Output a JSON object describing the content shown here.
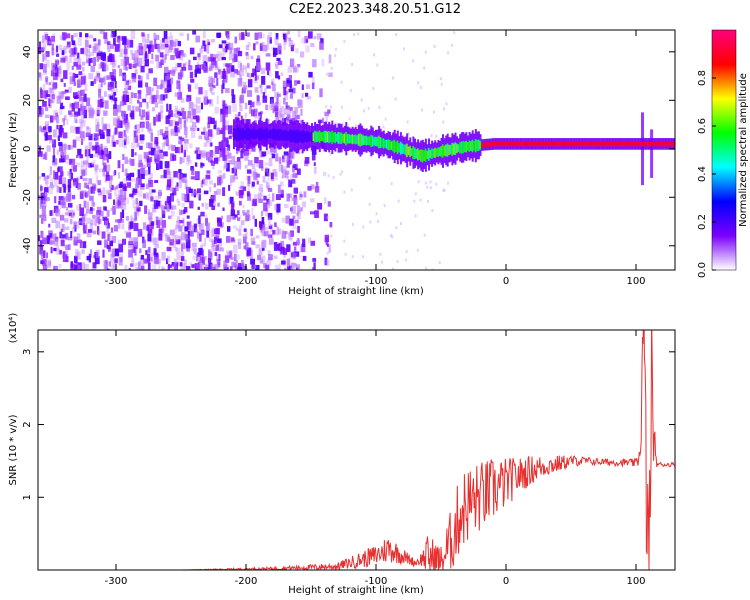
{
  "title": "C2E2.2023.348.20.51.G12",
  "chart_data": [
    {
      "type": "heatmap",
      "xlabel": "Height of straight line (km)",
      "ylabel": "Frequency (Hz)",
      "xlim": [
        -360,
        130
      ],
      "ylim": [
        -50,
        49
      ],
      "xticks": [
        -300,
        -200,
        -100,
        0,
        100
      ],
      "yticks": [
        -40,
        -20,
        0,
        20,
        40
      ],
      "colorbar": {
        "label": "Normalized spectral amplitude",
        "range": [
          0,
          1
        ],
        "ticks": [
          "0.0",
          "0.2",
          "0.4",
          "0.6",
          "0.8"
        ],
        "colors": [
          "#ffffff",
          "#7a00ff",
          "#0000ff",
          "#00ffff",
          "#00ff00",
          "#ffff00",
          "#ff0000",
          "#ff0080"
        ]
      },
      "ridge": {
        "x": [
          -200,
          -180,
          -160,
          -140,
          -120,
          -100,
          -80,
          -65,
          -50,
          -30,
          -10,
          10,
          50,
          100,
          130
        ],
        "y": [
          6,
          6,
          5,
          5,
          4,
          3,
          0,
          -3,
          -1,
          1,
          2,
          2,
          2,
          2,
          2
        ]
      },
      "spikes": [
        {
          "x": -217,
          "y": [
            -5,
            20
          ]
        },
        {
          "x": 105,
          "y": [
            -15,
            15
          ]
        },
        {
          "x": 112,
          "y": [
            -12,
            8
          ]
        }
      ]
    },
    {
      "type": "line",
      "xlabel": "Height of straight line (km)",
      "ylabel": "SNR (10 * v/v)",
      "yscale_label": "(x10⁴)",
      "xlim": [
        -360,
        130
      ],
      "ylim": [
        0,
        3.3
      ],
      "xticks": [
        -300,
        -200,
        -100,
        0,
        100
      ],
      "yticks": [
        1,
        2,
        3
      ],
      "series": [
        {
          "color": "#e83030",
          "x": [
            -360,
            -250,
            -180,
            -130,
            -100,
            -90,
            -75,
            -70,
            -65,
            -60,
            -50,
            -40,
            -35,
            -30,
            -20,
            -10,
            0,
            10,
            20,
            30,
            40,
            50,
            60,
            70,
            80,
            90,
            100,
            103,
            106,
            108,
            110,
            112,
            115,
            118,
            120,
            125,
            130
          ],
          "y": [
            0.0,
            0.0,
            0.02,
            0.05,
            0.2,
            0.3,
            0.15,
            0.1,
            0.15,
            0.2,
            0.1,
            0.5,
            0.8,
            0.9,
            1.0,
            1.1,
            1.2,
            1.3,
            1.38,
            1.43,
            1.46,
            1.5,
            1.5,
            1.49,
            1.48,
            1.48,
            1.47,
            1.6,
            3.3,
            1.0,
            0.1,
            2.6,
            1.5,
            1.45,
            1.45,
            1.45,
            1.45
          ],
          "noise": [
            0.0,
            0.0,
            0.02,
            0.05,
            0.15,
            0.2,
            0.08,
            0.05,
            0.1,
            0.3,
            0.25,
            0.5,
            0.55,
            0.55,
            0.5,
            0.45,
            0.35,
            0.25,
            0.2,
            0.15,
            0.12,
            0.08,
            0.06,
            0.05,
            0.05,
            0.05,
            0.06,
            0.2,
            1.0,
            0.9,
            1.0,
            1.0,
            0.1,
            0.04,
            0.03,
            0.03,
            0.03
          ]
        }
      ]
    }
  ]
}
